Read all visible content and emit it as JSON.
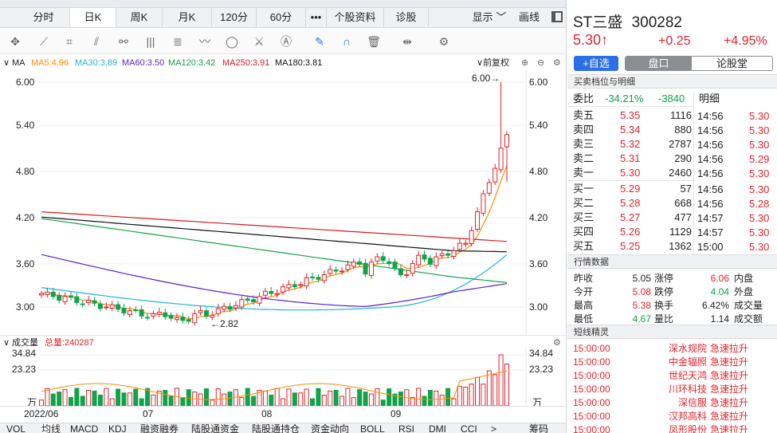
{
  "tabs": [
    {
      "label": "分时"
    },
    {
      "label": "日K"
    },
    {
      "label": "周K"
    },
    {
      "label": "月K"
    },
    {
      "label": "120分"
    },
    {
      "label": "60分"
    },
    {
      "label": "•••"
    },
    {
      "label": "个股资料"
    },
    {
      "label": "诊股"
    }
  ],
  "tab_right": {
    "display": "显示",
    "draw": "画线"
  },
  "ma": {
    "label": "MA",
    "ma5": "MA5:4.96",
    "ma30": "MA30:3.89",
    "ma60": "MA60:3.50",
    "ma120": "MA120:3.42",
    "ma250": "MA250:3.91",
    "ma180": "MA180:3.81",
    "adjust": "前复权"
  },
  "price_axis": {
    "labels": [
      "6.00",
      "5.40",
      "4.80",
      "4.20",
      "3.60",
      "3.00"
    ]
  },
  "annot": {
    "high": "6.00→",
    "low": "←2.82"
  },
  "volume": {
    "label": "成交量",
    "total": "总量:240287",
    "axis": [
      "34.84",
      "23.23",
      "万"
    ]
  },
  "dates": [
    "2022/06",
    "07",
    "08",
    "09"
  ],
  "bottom_tabs": [
    "VOL",
    "均线",
    "MACD",
    "KDJ",
    "融资融券",
    "陆股通资金",
    "陆股通持仓",
    "资金动向",
    "BOLL",
    "RSI",
    "DMI",
    "CCI",
    ">",
    "筹码"
  ],
  "stock": {
    "name": "ST三盛",
    "code": "300282",
    "price": "5.30",
    "arrow": "↑",
    "change": "+0.25",
    "pct": "+4.95%"
  },
  "buttons": {
    "add": "+自选",
    "pankou": "盘口",
    "lunguhall": "论股堂"
  },
  "order_section": "买卖档位与明细",
  "weibi": {
    "label": "委比",
    "pct": "-34.21%",
    "diff": "-3840",
    "mingxi": "明细"
  },
  "asks": [
    {
      "label": "卖五",
      "price": "5.35",
      "vol": "1116"
    },
    {
      "label": "卖四",
      "price": "5.34",
      "vol": "880"
    },
    {
      "label": "卖三",
      "price": "5.32",
      "vol": "2787"
    },
    {
      "label": "卖二",
      "price": "5.31",
      "vol": "290"
    },
    {
      "label": "卖一",
      "price": "5.30",
      "vol": "2460"
    }
  ],
  "bids": [
    {
      "label": "买一",
      "price": "5.29",
      "vol": "57"
    },
    {
      "label": "买二",
      "price": "5.28",
      "vol": "668"
    },
    {
      "label": "买三",
      "price": "5.27",
      "vol": "477"
    },
    {
      "label": "买四",
      "price": "5.26",
      "vol": "1129"
    },
    {
      "label": "买五",
      "price": "5.25",
      "vol": "1362"
    }
  ],
  "ticks": [
    {
      "time": "14:56",
      "price": "5.30"
    },
    {
      "time": "14:56",
      "price": "5.30"
    },
    {
      "time": "14:56",
      "price": "5.30"
    },
    {
      "time": "14:56",
      "price": "5.29"
    },
    {
      "time": "14:56",
      "price": "5.30"
    },
    {
      "time": "14:56",
      "price": "5.30"
    },
    {
      "time": "14:56",
      "price": "5.28"
    },
    {
      "time": "14:57",
      "price": "5.30"
    },
    {
      "time": "14:57",
      "price": "5.30"
    },
    {
      "time": "15:00",
      "price": "5.30"
    }
  ],
  "quote_section": "行情数据",
  "quote": [
    {
      "l1": "昨收",
      "v1": "5.05",
      "l2": "涨停",
      "v2": "6.06",
      "l3": "内盘"
    },
    {
      "l1": "今开",
      "v1": "5.08",
      "l2": "跌停",
      "v2": "4.04",
      "l3": "外盘"
    },
    {
      "l1": "最高",
      "v1": "5.38",
      "l2": "换手",
      "v2": "6.42%",
      "l3": "成交量"
    },
    {
      "l1": "最低",
      "v1": "4.67",
      "l2": "量比",
      "v2": "1.14",
      "l3": "成交额"
    }
  ],
  "short_section": "短线精灵",
  "short_list": [
    {
      "time": "15:00:00",
      "name": "深水规院",
      "type": "急速拉升"
    },
    {
      "time": "15:00:00",
      "name": "中金辐照",
      "type": "急速拉升"
    },
    {
      "time": "15:00:00",
      "name": "世纪天鸿",
      "type": "急速拉升"
    },
    {
      "time": "15:00:00",
      "name": "川环科技",
      "type": "急速拉升"
    },
    {
      "time": "15:00:00",
      "name": "深信服",
      "type": "急速拉升"
    },
    {
      "time": "15:00:00",
      "name": "汉邦高科",
      "type": "急速拉升"
    },
    {
      "time": "15:00:00",
      "name": "凤形股份",
      "type": "急速拉升"
    }
  ],
  "colors": {
    "red": "#e5232b",
    "green": "#10a34a",
    "blue_btn": "#2b6fe8",
    "ma5": "#ff8c00",
    "ma30": "#1fb6d4",
    "ma60": "#5a1fd0",
    "ma120": "#16a34a",
    "ma250": "#d91c1c",
    "ma180": "#111111"
  }
}
